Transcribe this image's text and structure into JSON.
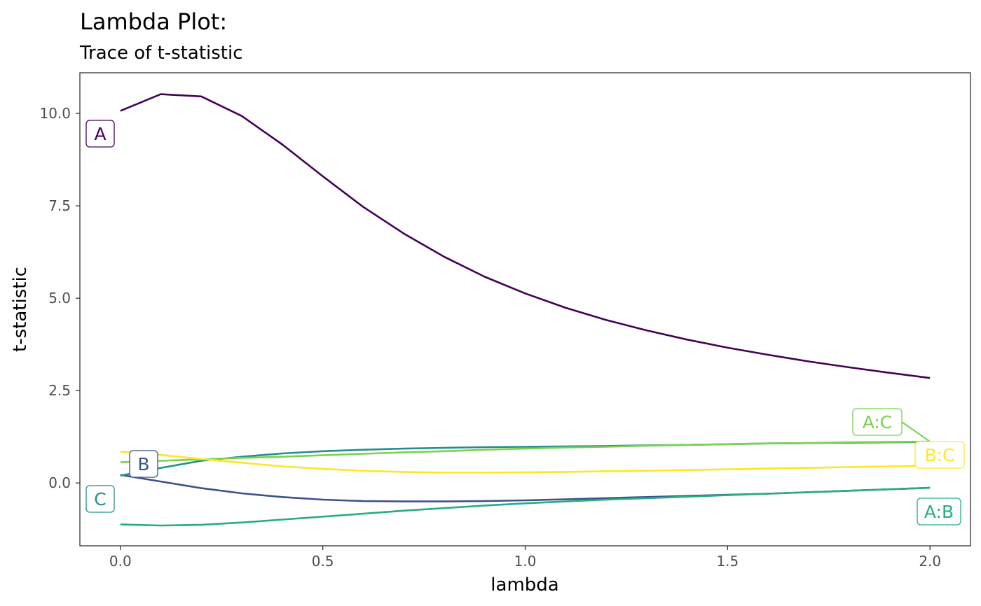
{
  "chart_data": {
    "type": "line",
    "title": "Lambda Plot:",
    "subtitle": "Trace of t-statistic",
    "xlabel": "lambda",
    "ylabel": "t-statistic",
    "xlim": [
      -0.1,
      2.1
    ],
    "ylim": [
      -1.7,
      11.1
    ],
    "x_ticks": [
      0.0,
      0.5,
      1.0,
      1.5,
      2.0
    ],
    "x_tick_labels": [
      "0.0",
      "0.5",
      "1.0",
      "1.5",
      "2.0"
    ],
    "y_ticks": [
      0.0,
      2.5,
      5.0,
      7.5,
      10.0
    ],
    "y_tick_labels": [
      "0.0",
      "2.5",
      "5.0",
      "7.5",
      "10.0"
    ],
    "grid": false,
    "x": [
      0.0,
      0.1,
      0.2,
      0.3,
      0.4,
      0.5,
      0.6,
      0.7,
      0.8,
      0.9,
      1.0,
      1.1,
      1.2,
      1.3,
      1.4,
      1.5,
      1.6,
      1.7,
      1.8,
      1.9,
      2.0
    ],
    "series": [
      {
        "name": "A",
        "color": "#440154",
        "values": [
          10.07,
          10.52,
          10.46,
          9.93,
          9.16,
          8.3,
          7.47,
          6.75,
          6.12,
          5.58,
          5.13,
          4.74,
          4.41,
          4.13,
          3.88,
          3.66,
          3.47,
          3.29,
          3.13,
          2.98,
          2.84
        ]
      },
      {
        "name": "B",
        "color": "#3b528b",
        "values": [
          0.22,
          0.04,
          -0.14,
          -0.28,
          -0.38,
          -0.45,
          -0.49,
          -0.5,
          -0.5,
          -0.49,
          -0.47,
          -0.44,
          -0.41,
          -0.38,
          -0.35,
          -0.32,
          -0.29,
          -0.25,
          -0.21,
          -0.17,
          -0.13
        ]
      },
      {
        "name": "C",
        "color": "#21908d",
        "values": [
          0.2,
          0.41,
          0.6,
          0.71,
          0.8,
          0.86,
          0.9,
          0.93,
          0.95,
          0.97,
          0.98,
          0.99,
          1.0,
          1.02,
          1.03,
          1.05,
          1.07,
          1.08,
          1.09,
          1.1,
          1.11
        ]
      },
      {
        "name": "A:B",
        "color": "#27ad81",
        "values": [
          -1.12,
          -1.15,
          -1.13,
          -1.07,
          -0.99,
          -0.91,
          -0.83,
          -0.75,
          -0.68,
          -0.61,
          -0.55,
          -0.5,
          -0.45,
          -0.41,
          -0.37,
          -0.33,
          -0.29,
          -0.25,
          -0.21,
          -0.17,
          -0.13
        ]
      },
      {
        "name": "A:C",
        "color": "#7ad151",
        "values": [
          0.56,
          0.6,
          0.64,
          0.68,
          0.71,
          0.75,
          0.79,
          0.83,
          0.86,
          0.9,
          0.93,
          0.96,
          0.98,
          1.01,
          1.03,
          1.05,
          1.07,
          1.08,
          1.1,
          1.11,
          1.12
        ]
      },
      {
        "name": "B:C",
        "color": "#fde725",
        "values": [
          0.85,
          0.76,
          0.65,
          0.55,
          0.45,
          0.38,
          0.33,
          0.3,
          0.28,
          0.28,
          0.29,
          0.3,
          0.32,
          0.33,
          0.35,
          0.37,
          0.39,
          0.41,
          0.43,
          0.45,
          0.47
        ]
      }
    ]
  }
}
